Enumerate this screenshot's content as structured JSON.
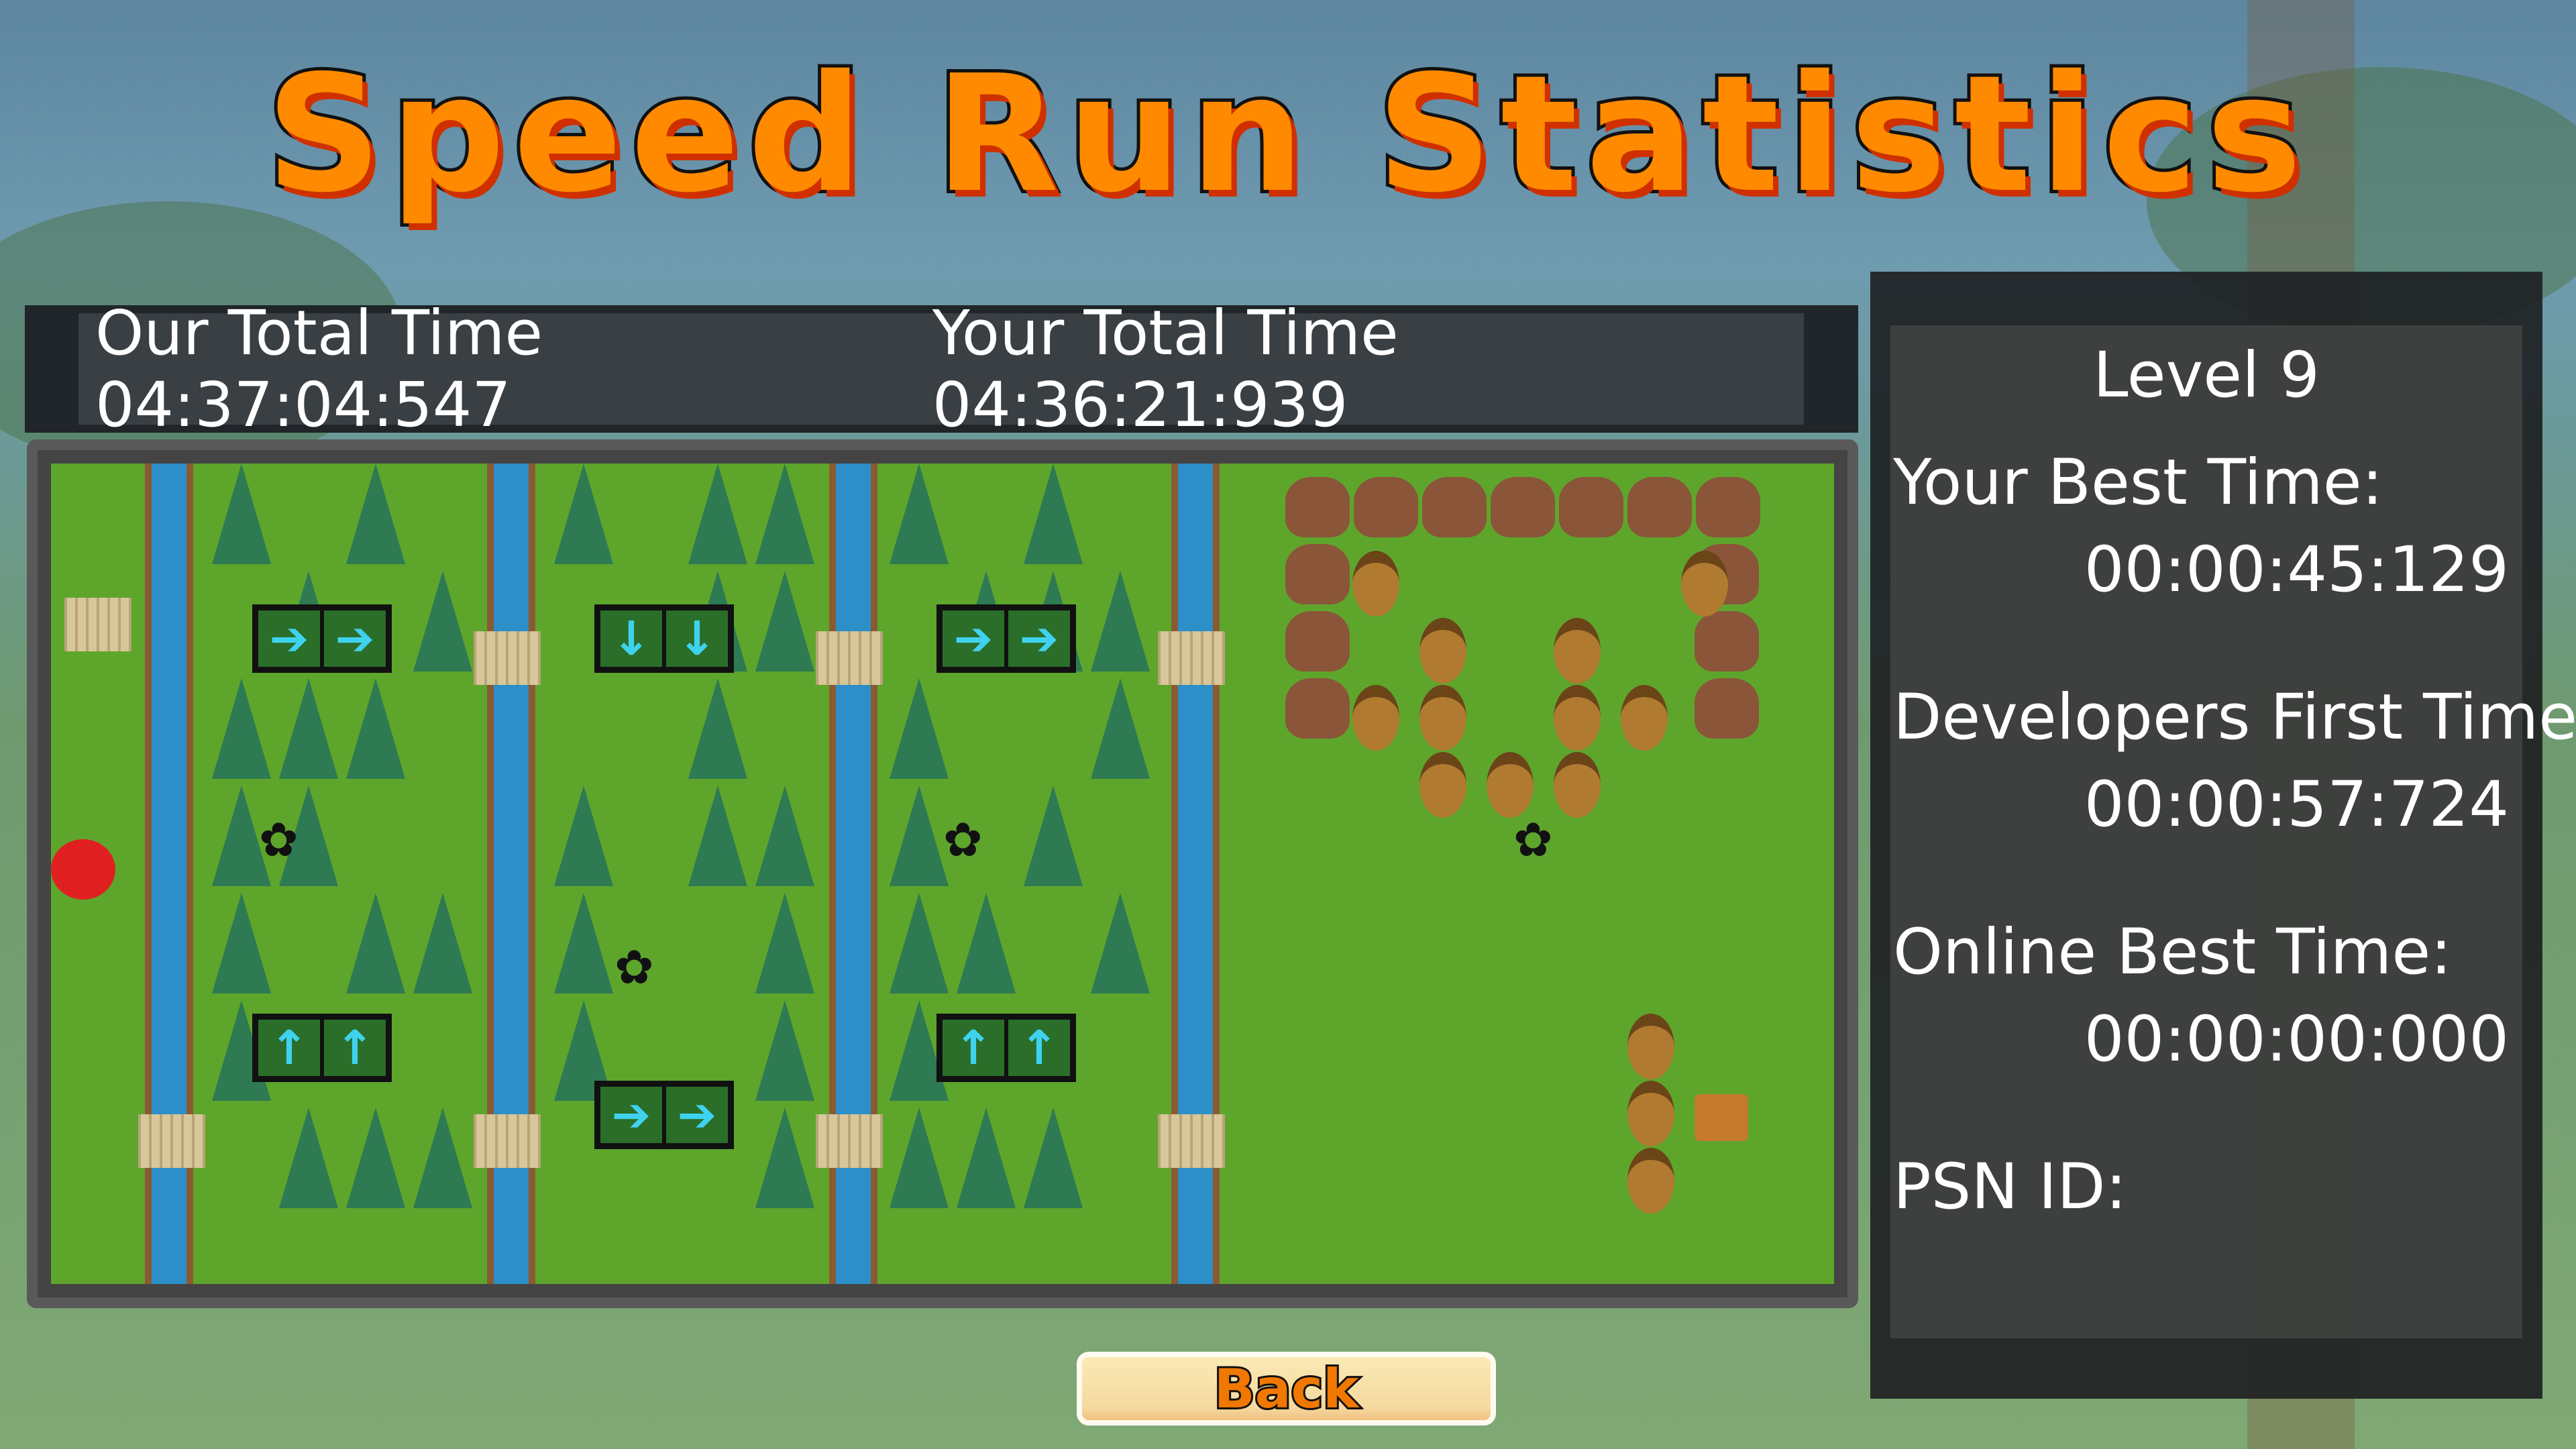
{
  "title": "Speed Run Statistics",
  "totals": {
    "our_total_label": "Our Total Time 04:37:04:547",
    "your_total_label": "Your Total Time 04:36:21:939"
  },
  "stats_panel": {
    "level": "Level 9",
    "your_best_label": "Your Best Time:",
    "your_best_value": "00:00:45:129",
    "dev_first_label": "Developers First Time:",
    "dev_first_value": "00:00:57:724",
    "online_best_label": "Online Best Time:",
    "online_best_value": "00:00:00:000",
    "psn_label": "PSN ID:",
    "psn_value": ""
  },
  "back_button": "Back",
  "colors": {
    "title": "#ff8a00",
    "grass": "#5ea52c",
    "water": "#2c8fc8",
    "panel": "#1e2123"
  },
  "icons": [
    "arrow-right-icon",
    "arrow-down-icon",
    "arrow-up-icon",
    "paw-print-icon",
    "acorn-icon",
    "rock-icon",
    "tree-icon",
    "treasure-chest-icon",
    "boar-icon",
    "player-icon"
  ]
}
